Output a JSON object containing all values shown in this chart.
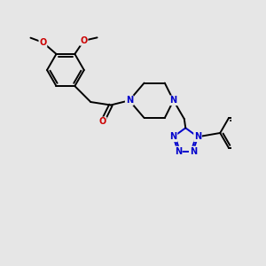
{
  "bg_color": "#e6e6e6",
  "bond_color": "#000000",
  "bond_width": 1.4,
  "atom_colors": {
    "N": "#0000cc",
    "O": "#cc0000",
    "F": "#cc00cc"
  },
  "font_size": 7.0,
  "fig_size": [
    3.0,
    3.0
  ],
  "xlim": [
    0,
    9
  ],
  "ylim": [
    0,
    9
  ]
}
